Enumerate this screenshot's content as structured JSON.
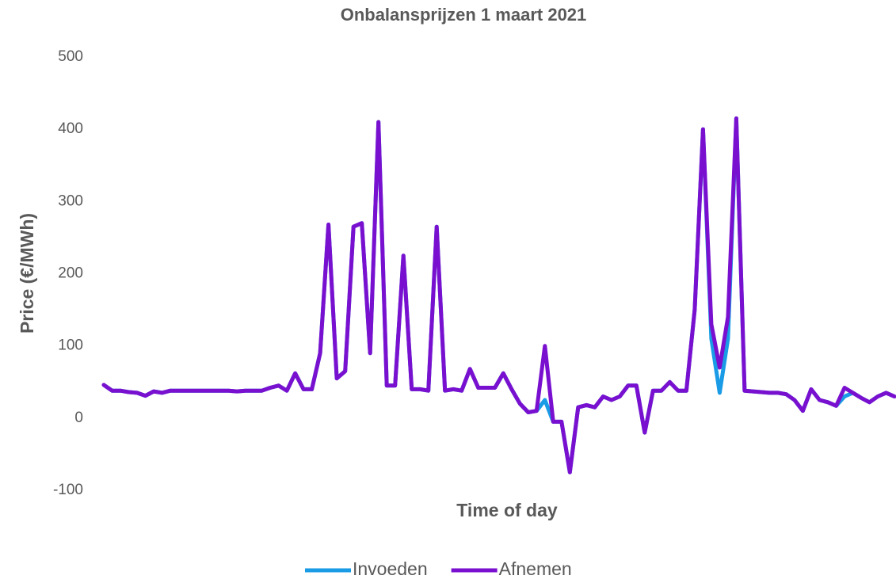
{
  "chart_data": {
    "type": "line",
    "title": "Onbalansprijzen 1 maart 2021",
    "x_label": "Time of day",
    "y_label": "Price (€/MWh)",
    "ylim": [
      -100,
      500
    ],
    "yticks": [
      -100,
      0,
      100,
      200,
      300,
      400,
      500
    ],
    "grid": false,
    "legend": "bottom",
    "series": [
      {
        "name": "Invoeden",
        "color": "#1a9be6",
        "values": [
          46,
          38,
          38,
          36,
          35,
          31,
          37,
          35,
          38,
          38,
          38,
          38,
          38,
          38,
          38,
          38,
          37,
          38,
          38,
          38,
          42,
          45,
          38,
          62,
          40,
          40,
          90,
          268,
          55,
          65,
          265,
          270,
          90,
          410,
          45,
          45,
          225,
          40,
          40,
          38,
          265,
          38,
          40,
          38,
          68,
          42,
          42,
          42,
          62,
          40,
          20,
          8,
          10,
          25,
          -5,
          -5,
          -75,
          15,
          18,
          15,
          30,
          25,
          30,
          45,
          45,
          -20,
          38,
          38,
          50,
          38,
          38,
          150,
          400,
          110,
          35,
          110,
          415,
          38,
          37,
          36,
          35,
          35,
          33,
          25,
          10,
          40,
          25,
          22,
          17,
          30,
          35,
          28,
          22,
          30,
          35,
          30
        ]
      },
      {
        "name": "Afnemen",
        "color": "#7a10cf",
        "values": [
          46,
          38,
          38,
          36,
          35,
          31,
          37,
          35,
          38,
          38,
          38,
          38,
          38,
          38,
          38,
          38,
          37,
          38,
          38,
          38,
          42,
          45,
          38,
          62,
          40,
          40,
          90,
          268,
          55,
          65,
          265,
          270,
          90,
          410,
          45,
          45,
          225,
          40,
          40,
          38,
          265,
          38,
          40,
          38,
          68,
          42,
          42,
          42,
          62,
          40,
          20,
          8,
          10,
          100,
          -5,
          -5,
          -75,
          15,
          18,
          15,
          30,
          25,
          30,
          45,
          45,
          -20,
          38,
          38,
          50,
          38,
          38,
          150,
          400,
          130,
          70,
          140,
          415,
          38,
          37,
          36,
          35,
          35,
          33,
          25,
          10,
          40,
          25,
          22,
          17,
          42,
          35,
          28,
          22,
          30,
          35,
          30
        ]
      }
    ]
  }
}
